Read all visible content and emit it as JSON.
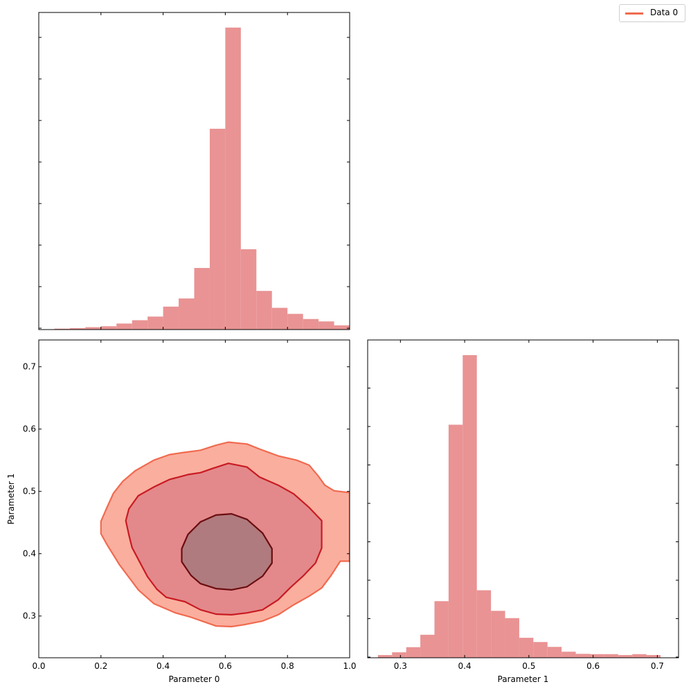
{
  "chart_data": [
    {
      "type": "bar",
      "panel": "top-left",
      "kind": "histogram",
      "series_name": "Data 0",
      "xlim": [
        0,
        1
      ],
      "bins": [
        [
          0.0,
          0.05,
          0.001
        ],
        [
          0.05,
          0.1,
          0.003
        ],
        [
          0.1,
          0.15,
          0.005
        ],
        [
          0.15,
          0.2,
          0.008
        ],
        [
          0.2,
          0.25,
          0.011
        ],
        [
          0.25,
          0.3,
          0.02
        ],
        [
          0.3,
          0.35,
          0.031
        ],
        [
          0.35,
          0.4,
          0.043
        ],
        [
          0.4,
          0.45,
          0.076
        ],
        [
          0.45,
          0.5,
          0.103
        ],
        [
          0.5,
          0.55,
          0.204
        ],
        [
          0.55,
          0.6,
          0.665
        ],
        [
          0.6,
          0.65,
          1.0
        ],
        [
          0.65,
          0.7,
          0.266
        ],
        [
          0.7,
          0.75,
          0.128
        ],
        [
          0.75,
          0.8,
          0.072
        ],
        [
          0.8,
          0.85,
          0.052
        ],
        [
          0.85,
          0.9,
          0.035
        ],
        [
          0.9,
          0.95,
          0.027
        ],
        [
          0.95,
          1.0,
          0.014
        ]
      ]
    },
    {
      "type": "contour",
      "panel": "bottom-left",
      "series_name": "Data 0",
      "xlabel": "Parameter 0",
      "ylabel": "Parameter 1",
      "xlim": [
        0,
        1
      ],
      "ylim": [
        0.233,
        0.743
      ],
      "xticks": [
        "0.0",
        "0.2",
        "0.4",
        "0.6",
        "0.8",
        "1.0"
      ],
      "yticks": [
        "0.3",
        "0.4",
        "0.5",
        "0.6",
        "0.7"
      ],
      "levels": [
        {
          "name": "outer",
          "points": [
            [
              0.2,
              0.452
            ],
            [
              0.22,
              0.475
            ],
            [
              0.24,
              0.497
            ],
            [
              0.27,
              0.516
            ],
            [
              0.31,
              0.533
            ],
            [
              0.37,
              0.55
            ],
            [
              0.42,
              0.559
            ],
            [
              0.46,
              0.562
            ],
            [
              0.52,
              0.566
            ],
            [
              0.57,
              0.574
            ],
            [
              0.61,
              0.579
            ],
            [
              0.67,
              0.576
            ],
            [
              0.71,
              0.568
            ],
            [
              0.77,
              0.557
            ],
            [
              0.83,
              0.55
            ],
            [
              0.87,
              0.542
            ],
            [
              0.9,
              0.524
            ],
            [
              0.92,
              0.51
            ],
            [
              0.95,
              0.501
            ],
            [
              1.0,
              0.498
            ],
            [
              1.0,
              0.388
            ],
            [
              0.97,
              0.388
            ],
            [
              0.94,
              0.365
            ],
            [
              0.91,
              0.345
            ],
            [
              0.87,
              0.332
            ],
            [
              0.82,
              0.318
            ],
            [
              0.77,
              0.302
            ],
            [
              0.72,
              0.292
            ],
            [
              0.66,
              0.286
            ],
            [
              0.62,
              0.283
            ],
            [
              0.57,
              0.284
            ],
            [
              0.53,
              0.291
            ],
            [
              0.49,
              0.298
            ],
            [
              0.44,
              0.305
            ],
            [
              0.37,
              0.32
            ],
            [
              0.32,
              0.342
            ],
            [
              0.29,
              0.362
            ],
            [
              0.26,
              0.382
            ],
            [
              0.24,
              0.398
            ],
            [
              0.22,
              0.414
            ],
            [
              0.2,
              0.432
            ]
          ]
        },
        {
          "name": "middle",
          "points": [
            [
              0.28,
              0.453
            ],
            [
              0.29,
              0.472
            ],
            [
              0.32,
              0.493
            ],
            [
              0.37,
              0.507
            ],
            [
              0.42,
              0.519
            ],
            [
              0.48,
              0.527
            ],
            [
              0.52,
              0.53
            ],
            [
              0.56,
              0.537
            ],
            [
              0.61,
              0.545
            ],
            [
              0.67,
              0.539
            ],
            [
              0.71,
              0.523
            ],
            [
              0.77,
              0.51
            ],
            [
              0.82,
              0.496
            ],
            [
              0.87,
              0.474
            ],
            [
              0.91,
              0.453
            ],
            [
              0.91,
              0.409
            ],
            [
              0.89,
              0.385
            ],
            [
              0.85,
              0.364
            ],
            [
              0.81,
              0.346
            ],
            [
              0.77,
              0.326
            ],
            [
              0.72,
              0.31
            ],
            [
              0.67,
              0.305
            ],
            [
              0.62,
              0.302
            ],
            [
              0.57,
              0.303
            ],
            [
              0.52,
              0.31
            ],
            [
              0.47,
              0.323
            ],
            [
              0.41,
              0.33
            ],
            [
              0.38,
              0.343
            ],
            [
              0.35,
              0.363
            ],
            [
              0.32,
              0.391
            ],
            [
              0.3,
              0.41
            ],
            [
              0.29,
              0.43
            ]
          ]
        },
        {
          "name": "inner",
          "points": [
            [
              0.46,
              0.408
            ],
            [
              0.48,
              0.431
            ],
            [
              0.52,
              0.451
            ],
            [
              0.57,
              0.462
            ],
            [
              0.62,
              0.464
            ],
            [
              0.67,
              0.455
            ],
            [
              0.72,
              0.433
            ],
            [
              0.75,
              0.408
            ],
            [
              0.75,
              0.385
            ],
            [
              0.72,
              0.364
            ],
            [
              0.67,
              0.347
            ],
            [
              0.62,
              0.342
            ],
            [
              0.57,
              0.344
            ],
            [
              0.52,
              0.352
            ],
            [
              0.49,
              0.365
            ],
            [
              0.46,
              0.387
            ]
          ]
        }
      ]
    },
    {
      "type": "bar",
      "panel": "bottom-right",
      "kind": "histogram",
      "series_name": "Data 0",
      "xlabel": "Parameter 1",
      "xlim": [
        0.249,
        0.733
      ],
      "xticks": [
        "0.3",
        "0.4",
        "0.5",
        "0.6",
        "0.7"
      ],
      "bins": [
        [
          0.265,
          0.287,
          0.009
        ],
        [
          0.287,
          0.309,
          0.018
        ],
        [
          0.309,
          0.331,
          0.035
        ],
        [
          0.331,
          0.353,
          0.076
        ],
        [
          0.353,
          0.375,
          0.187
        ],
        [
          0.375,
          0.397,
          0.77
        ],
        [
          0.397,
          0.419,
          1.0
        ],
        [
          0.419,
          0.441,
          0.223
        ],
        [
          0.441,
          0.463,
          0.155
        ],
        [
          0.463,
          0.485,
          0.131
        ],
        [
          0.485,
          0.507,
          0.066
        ],
        [
          0.507,
          0.529,
          0.052
        ],
        [
          0.529,
          0.551,
          0.036
        ],
        [
          0.551,
          0.573,
          0.02
        ],
        [
          0.573,
          0.595,
          0.013
        ],
        [
          0.595,
          0.617,
          0.012
        ],
        [
          0.617,
          0.639,
          0.012
        ],
        [
          0.639,
          0.661,
          0.009
        ],
        [
          0.661,
          0.683,
          0.012
        ],
        [
          0.683,
          0.705,
          0.009
        ]
      ]
    }
  ],
  "legend": {
    "label": "Data 0",
    "color": "#f06a4f"
  },
  "colors": {
    "hist_fill": "#e99394",
    "outer_fill": "#faae9e",
    "outer_line": "#f06a4f",
    "middle_fill": "#e3898b",
    "middle_line": "#c81b22",
    "inner_fill": "#b07b7e",
    "inner_line": "#6b0d10"
  }
}
